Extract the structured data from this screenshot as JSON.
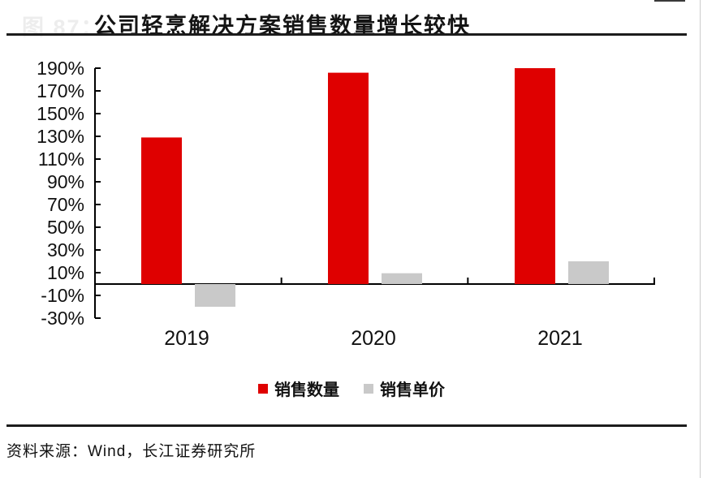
{
  "header": {
    "figure_label": "图 87：",
    "title": "公司轻烹解决方案销售数量增长较快"
  },
  "footer": {
    "source": "资料来源：Wind，长江证券研究所"
  },
  "chart_data": {
    "type": "bar",
    "title": "公司轻烹解决方案销售数量增长较快",
    "categories": [
      "2019",
      "2020",
      "2021"
    ],
    "series": [
      {
        "name": "销售数量",
        "color": "#df0000",
        "values": [
          129,
          186,
          190
        ]
      },
      {
        "name": "销售单价",
        "color": "#c9c9c9",
        "values": [
          -20,
          9.5,
          20
        ]
      }
    ],
    "unit": "%",
    "ylim": [
      -30,
      190
    ],
    "ytick_step": 20,
    "ytick_labels": [
      "190%",
      "170%",
      "150%",
      "130%",
      "110%",
      "90%",
      "70%",
      "50%",
      "30%",
      "10%",
      "-10%",
      "-30%"
    ],
    "xlabel": "",
    "ylabel": "",
    "grid": false,
    "legend_position": "bottom",
    "axis_color": "#000000",
    "label_color": "#111111"
  }
}
